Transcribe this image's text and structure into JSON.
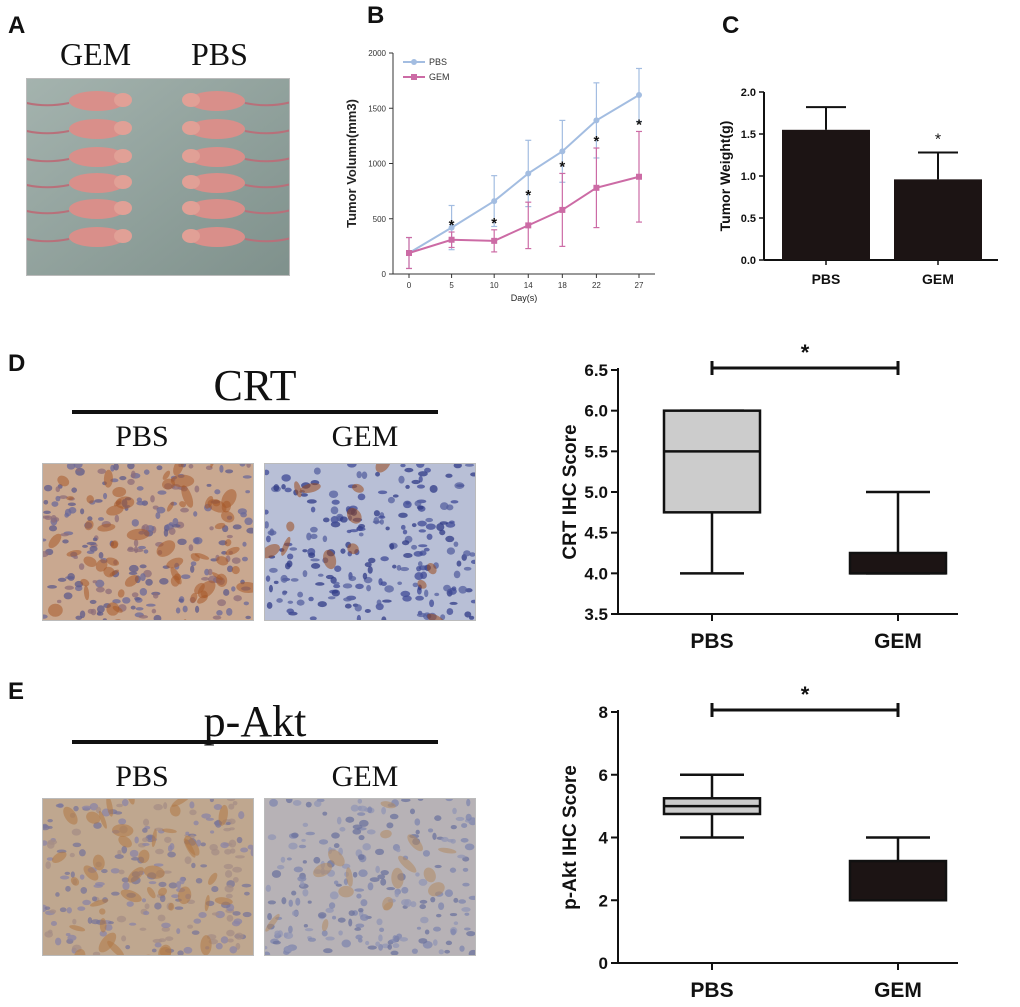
{
  "panel_labels": {
    "a": "A",
    "b": "B",
    "c": "C",
    "d": "D",
    "e": "E"
  },
  "panel_a": {
    "left_label": "GEM",
    "right_label": "PBS"
  },
  "chart_data": [
    {
      "id": "B",
      "type": "line",
      "ylabel": "Tumor Volumn(mm3)",
      "xlabel": "Day(s)",
      "x": [
        0,
        5,
        10,
        14,
        18,
        22,
        27
      ],
      "x_ticks": [
        "0",
        "5",
        "10",
        "14",
        "18",
        "22",
        "27"
      ],
      "ylim": [
        0,
        2000
      ],
      "y_ticks": [
        "0",
        "500",
        "1000",
        "1500",
        "2000"
      ],
      "legend_position": "top-left",
      "series": [
        {
          "name": "PBS",
          "color": "#a3bde1",
          "values": [
            190,
            420,
            660,
            910,
            1110,
            1390,
            1620
          ],
          "errors": [
            140,
            200,
            230,
            300,
            280,
            340,
            240
          ]
        },
        {
          "name": "GEM",
          "color": "#cc6ba5",
          "values": [
            190,
            310,
            300,
            440,
            580,
            780,
            880
          ],
          "errors": [
            140,
            70,
            100,
            210,
            330,
            360,
            410
          ]
        }
      ],
      "significance": [
        "",
        "*",
        "*",
        "*",
        "*",
        "*",
        "*"
      ]
    },
    {
      "id": "C",
      "type": "bar",
      "ylabel": "Tumor Weight(g)",
      "categories": [
        "PBS",
        "GEM"
      ],
      "values": [
        1.55,
        0.96
      ],
      "errors": [
        0.27,
        0.32
      ],
      "ylim": [
        0,
        2.0
      ],
      "y_ticks": [
        "0.0",
        "0.5",
        "1.0",
        "1.5",
        "2.0"
      ],
      "significance": [
        "",
        "*"
      ]
    },
    {
      "id": "D",
      "type": "box",
      "ylabel": "CRT IHC Score",
      "categories": [
        "PBS",
        "GEM"
      ],
      "boxes": [
        {
          "min": 4.0,
          "q1": 4.75,
          "median": 5.5,
          "q3": 6.0,
          "max": 6.0,
          "fill": "#cccccc"
        },
        {
          "min": 4.0,
          "q1": 4.0,
          "median": 4.0,
          "q3": 4.25,
          "max": 5.0,
          "fill": "#1c1414"
        }
      ],
      "ylim": [
        3.5,
        6.5
      ],
      "y_ticks": [
        "3.5",
        "4.0",
        "4.5",
        "5.0",
        "5.5",
        "6.0",
        "6.5"
      ],
      "significance": "*"
    },
    {
      "id": "E",
      "type": "box",
      "ylabel": "p-Akt IHC Score",
      "categories": [
        "PBS",
        "GEM"
      ],
      "boxes": [
        {
          "min": 4.0,
          "q1": 4.75,
          "median": 5.0,
          "q3": 5.25,
          "max": 6.0,
          "fill": "#cccccc"
        },
        {
          "min": 2.0,
          "q1": 2.0,
          "median": 2.0,
          "q3": 3.25,
          "max": 4.0,
          "fill": "#1c1414"
        }
      ],
      "ylim": [
        0,
        8
      ],
      "y_ticks": [
        "0",
        "2",
        "4",
        "6",
        "8"
      ],
      "significance": "*"
    }
  ],
  "panel_d": {
    "title": "CRT",
    "left_label": "PBS",
    "right_label": "GEM"
  },
  "panel_e": {
    "title": "p-Akt",
    "left_label": "PBS",
    "right_label": "GEM"
  }
}
